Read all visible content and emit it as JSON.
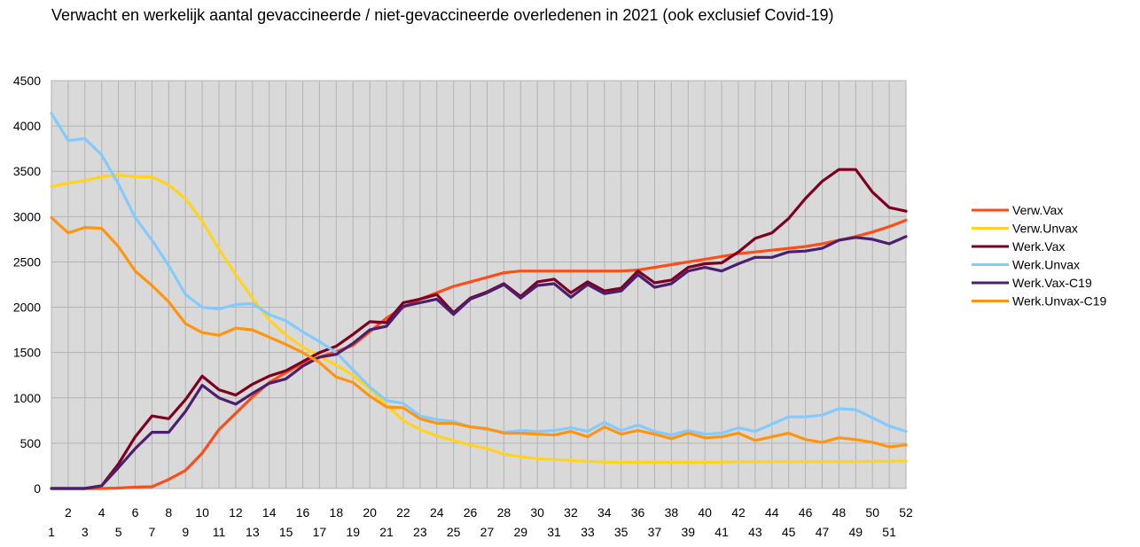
{
  "chart_data": {
    "type": "line",
    "title": "Verwacht en werkelijk aantal gevaccineerde / niet-gevaccineerde overledenen in 2021 (ook exclusief Covid-19)",
    "xlabel": "",
    "ylabel": "",
    "ylim": [
      0,
      4500
    ],
    "yticks": [
      0,
      500,
      1000,
      1500,
      2000,
      2500,
      3000,
      3500,
      4000,
      4500
    ],
    "grid": true,
    "legend_position": "right",
    "x": [
      1,
      2,
      3,
      4,
      5,
      6,
      7,
      8,
      9,
      10,
      11,
      12,
      13,
      14,
      15,
      16,
      17,
      18,
      19,
      20,
      21,
      22,
      23,
      24,
      25,
      26,
      27,
      28,
      29,
      30,
      31,
      32,
      33,
      34,
      35,
      36,
      37,
      38,
      39,
      40,
      41,
      42,
      43,
      44,
      45,
      46,
      47,
      48,
      49,
      50,
      51,
      52
    ],
    "series": [
      {
        "name": "Verw.Vax",
        "color": "#ff4d1a",
        "values": [
          0,
          0,
          0,
          0,
          5,
          15,
          20,
          100,
          200,
          390,
          650,
          830,
          1010,
          1170,
          1280,
          1380,
          1450,
          1510,
          1580,
          1730,
          1880,
          2000,
          2090,
          2160,
          2230,
          2280,
          2330,
          2380,
          2400,
          2400,
          2400,
          2400,
          2400,
          2400,
          2400,
          2410,
          2440,
          2470,
          2500,
          2530,
          2560,
          2590,
          2610,
          2630,
          2650,
          2670,
          2700,
          2740,
          2780,
          2830,
          2890,
          2960
        ]
      },
      {
        "name": "Verw.Unvax",
        "color": "#ffd320",
        "values": [
          3330,
          3370,
          3400,
          3440,
          3460,
          3440,
          3440,
          3350,
          3200,
          2950,
          2640,
          2360,
          2100,
          1860,
          1690,
          1560,
          1460,
          1360,
          1250,
          1100,
          920,
          750,
          650,
          580,
          530,
          480,
          440,
          380,
          350,
          330,
          320,
          310,
          300,
          290,
          290,
          290,
          290,
          290,
          290,
          290,
          290,
          295,
          295,
          295,
          295,
          295,
          295,
          295,
          295,
          300,
          300,
          305
        ]
      },
      {
        "name": "Werk.Vax",
        "color": "#7e0021",
        "values": [
          0,
          0,
          0,
          30,
          270,
          570,
          800,
          770,
          980,
          1240,
          1090,
          1030,
          1150,
          1240,
          1300,
          1400,
          1500,
          1570,
          1700,
          1840,
          1830,
          2050,
          2090,
          2140,
          1940,
          2100,
          2170,
          2260,
          2120,
          2280,
          2310,
          2160,
          2280,
          2180,
          2210,
          2400,
          2270,
          2300,
          2440,
          2480,
          2490,
          2610,
          2760,
          2820,
          2980,
          3200,
          3390,
          3520,
          3520,
          3270,
          3100,
          3060
        ]
      },
      {
        "name": "Werk.Unvax",
        "color": "#83caff",
        "values": [
          4140,
          3840,
          3860,
          3680,
          3360,
          2990,
          2740,
          2460,
          2140,
          2000,
          1980,
          2030,
          2040,
          1920,
          1850,
          1730,
          1620,
          1500,
          1310,
          1120,
          970,
          940,
          800,
          760,
          740,
          680,
          650,
          620,
          640,
          630,
          640,
          670,
          630,
          730,
          640,
          700,
          630,
          590,
          640,
          600,
          610,
          670,
          630,
          710,
          790,
          790,
          810,
          880,
          870,
          780,
          690,
          630
        ]
      },
      {
        "name": "Werk.Vax-C19",
        "color": "#4b1f6f",
        "values": [
          0,
          0,
          0,
          30,
          230,
          440,
          620,
          620,
          850,
          1140,
          1000,
          930,
          1050,
          1160,
          1210,
          1350,
          1450,
          1480,
          1600,
          1750,
          1790,
          2010,
          2050,
          2090,
          1920,
          2090,
          2160,
          2250,
          2100,
          2240,
          2260,
          2110,
          2250,
          2150,
          2180,
          2360,
          2220,
          2260,
          2400,
          2440,
          2400,
          2480,
          2550,
          2550,
          2610,
          2620,
          2650,
          2740,
          2770,
          2750,
          2700,
          2780
        ]
      },
      {
        "name": "Werk.Unvax-C19",
        "color": "#ff950e",
        "values": [
          2990,
          2820,
          2880,
          2870,
          2670,
          2400,
          2240,
          2060,
          1820,
          1720,
          1690,
          1770,
          1750,
          1670,
          1590,
          1500,
          1390,
          1230,
          1170,
          1020,
          900,
          890,
          770,
          720,
          720,
          680,
          660,
          610,
          610,
          600,
          590,
          630,
          570,
          680,
          600,
          640,
          600,
          550,
          610,
          560,
          570,
          610,
          530,
          570,
          610,
          540,
          510,
          560,
          540,
          510,
          460,
          480
        ]
      }
    ]
  }
}
